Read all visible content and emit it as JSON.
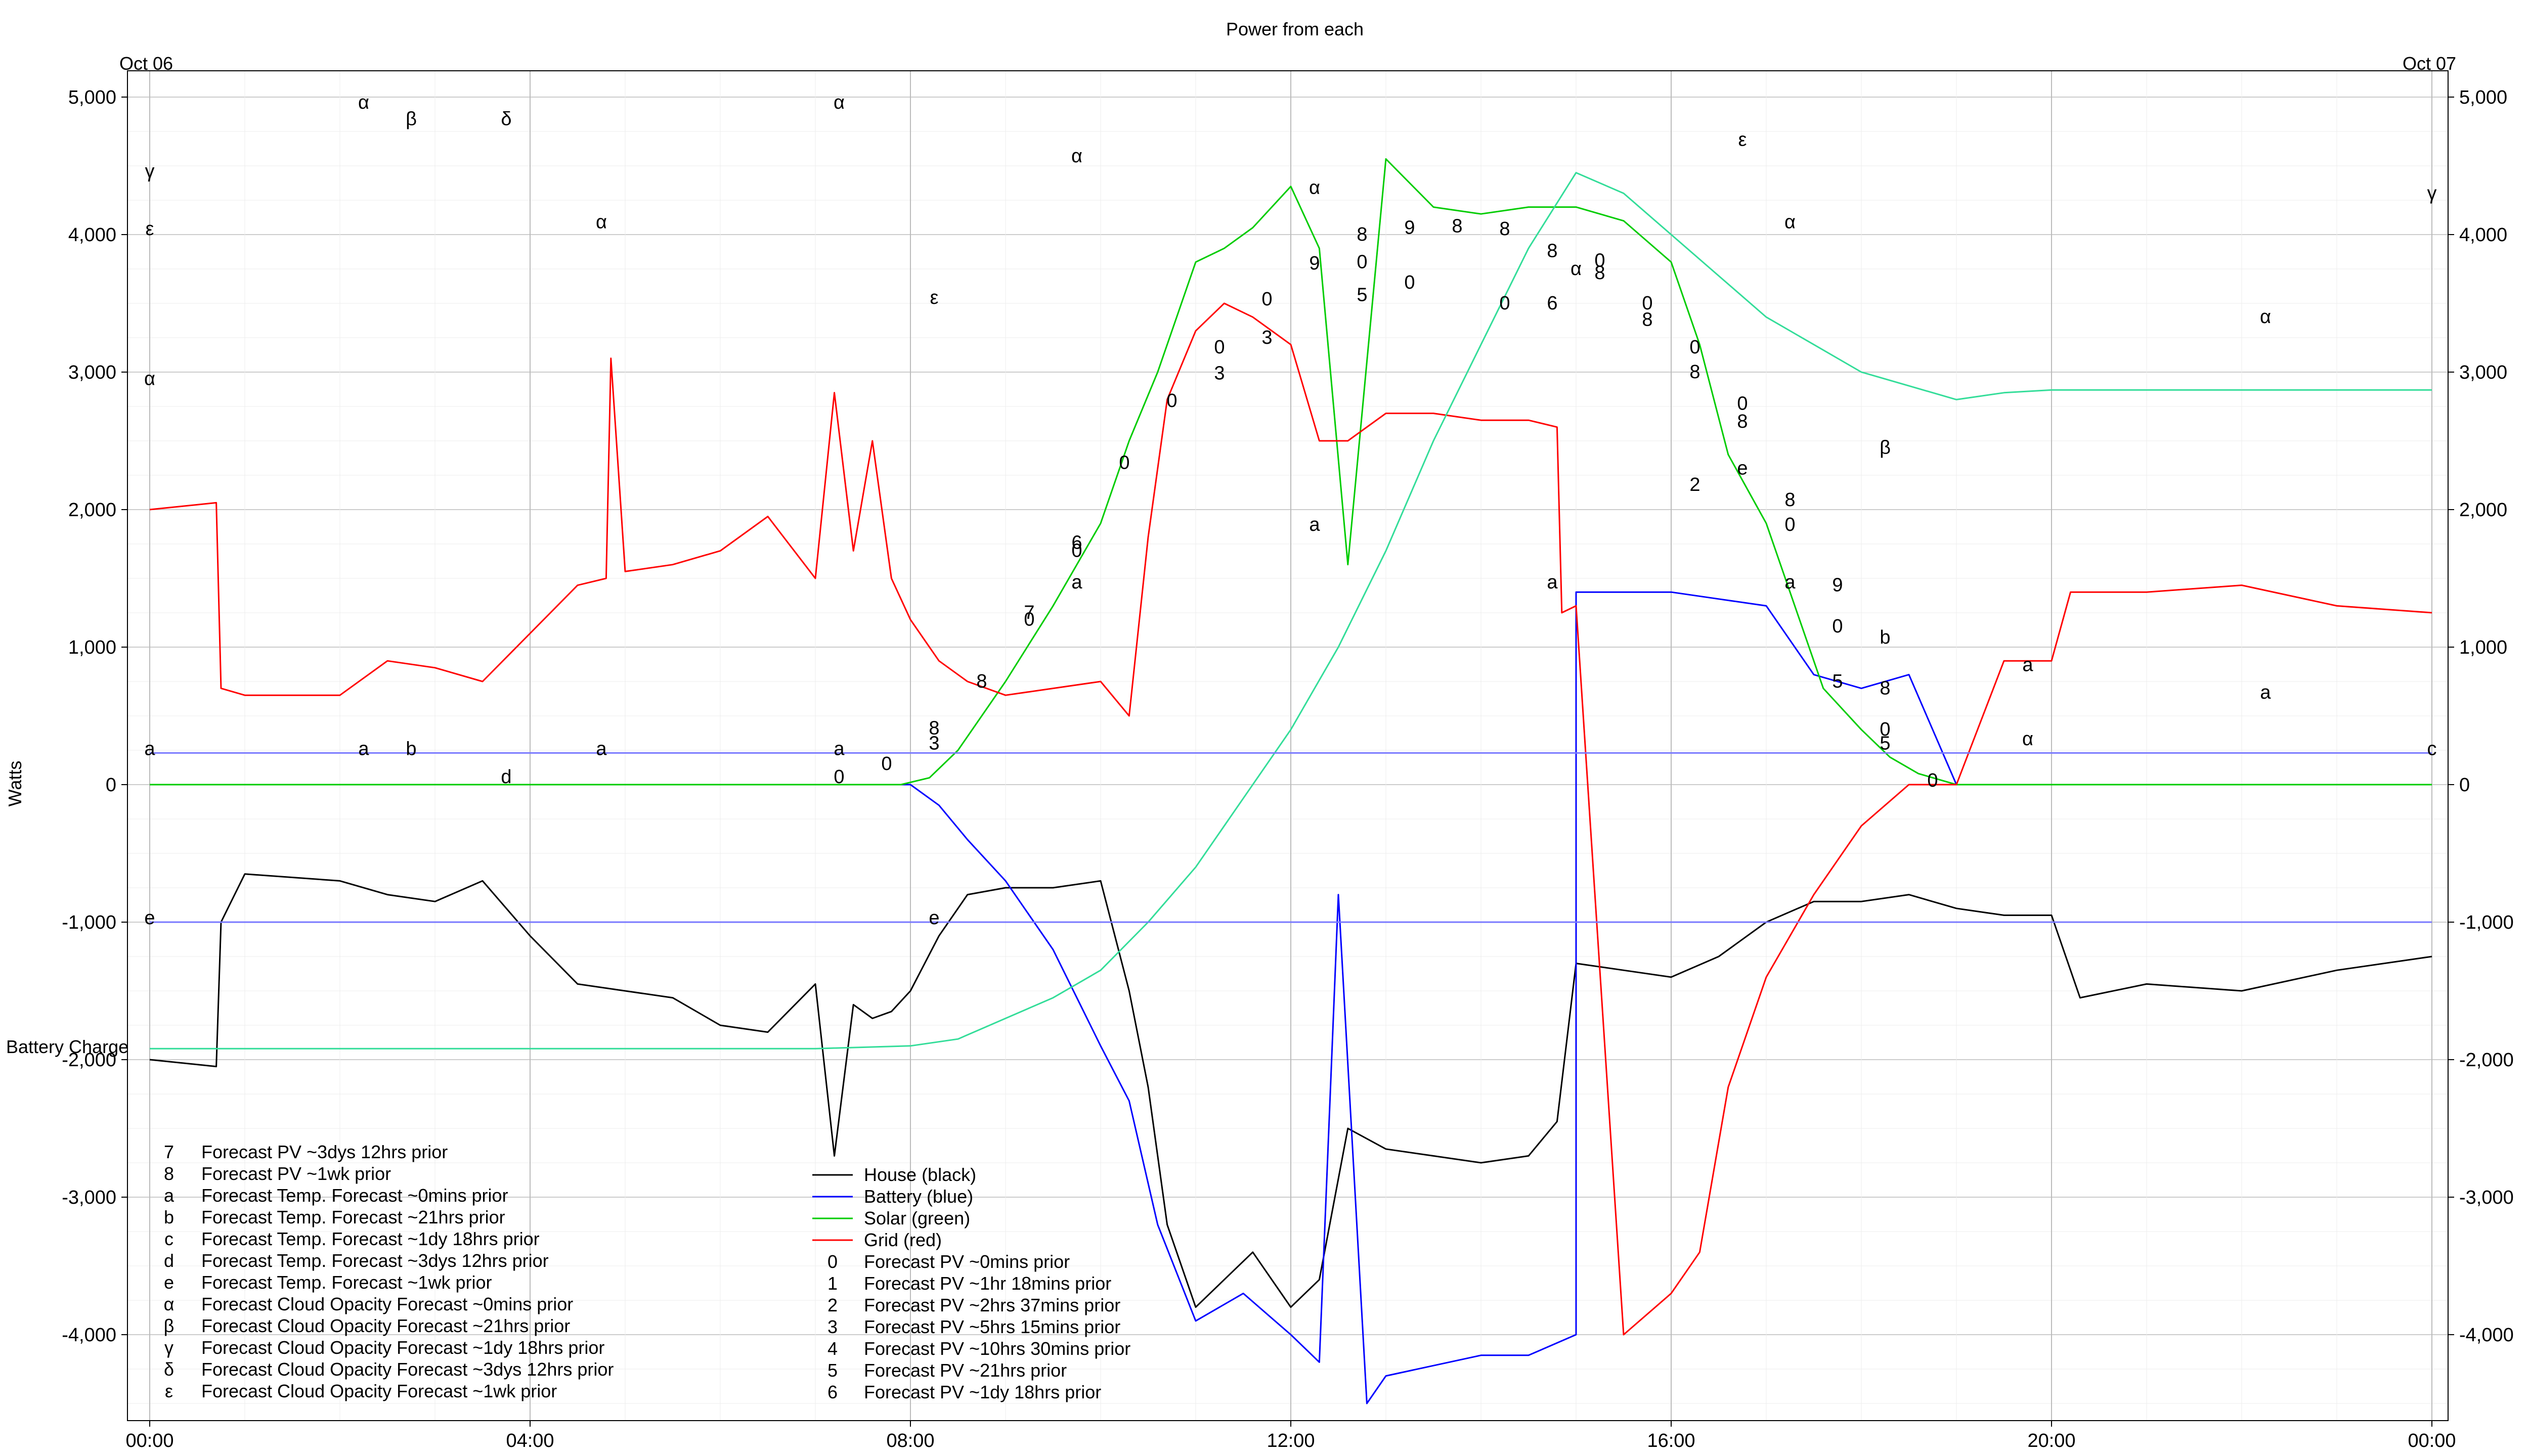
{
  "chart_data": {
    "type": "line",
    "title": "Power from each",
    "ylabel": "Watts",
    "start_date_label": "Oct 06",
    "end_date_label": "Oct 07",
    "battery_charge_label": "Battery Charge",
    "x_range_hours": [
      0,
      24
    ],
    "ylim": [
      -4650,
      5050
    ],
    "y_ticks": [
      5000,
      4000,
      3000,
      2000,
      1000,
      0,
      -1000,
      -2000,
      -3000,
      -4000
    ],
    "y_tick_labels": [
      "5,000",
      "4,000",
      "3,000",
      "2,000",
      "1,000",
      "0",
      "-1,000",
      "-2,000",
      "-3,000",
      "-4,000"
    ],
    "x_ticks": [
      0,
      4,
      8,
      12,
      16,
      20,
      24
    ],
    "x_tick_labels": [
      "00:00",
      "04:00",
      "08:00",
      "12:00",
      "16:00",
      "20:00",
      "00:00"
    ],
    "grid": true,
    "colors": {
      "house": "#000000",
      "battery": "#0000ff",
      "solar": "#00cc00",
      "grid": "#ff0000",
      "battery_charge": "#33dd99",
      "temp_forecast": "#7777ff",
      "pv_forecast": "#b088ff",
      "cloud_forecast": "#aaaaaa",
      "grid_lines": "#cccccc"
    },
    "series": [
      {
        "name": "House (black)",
        "key": "house",
        "x": [
          0,
          0.7,
          0.75,
          1.0,
          2.0,
          2.5,
          3.0,
          3.5,
          4.0,
          4.5,
          5.0,
          5.5,
          6.0,
          6.5,
          7.0,
          7.2,
          7.4,
          7.6,
          7.8,
          8.0,
          8.3,
          8.6,
          9.0,
          9.5,
          10.0,
          10.3,
          10.5,
          10.7,
          11.0,
          11.3,
          11.6,
          12.0,
          12.3,
          12.6,
          13.0,
          13.5,
          14.0,
          14.5,
          14.8,
          15.0,
          15.5,
          16.0,
          16.5,
          17.0,
          17.5,
          18.0,
          18.5,
          19.0,
          19.5,
          20.0,
          20.3,
          21.0,
          22.0,
          23.0,
          24.0
        ],
        "y": [
          -2000,
          -2050,
          -1000,
          -650,
          -700,
          -800,
          -850,
          -700,
          -1100,
          -1450,
          -1500,
          -1550,
          -1750,
          -1800,
          -1450,
          -2700,
          -1600,
          -1700,
          -1650,
          -1500,
          -1100,
          -800,
          -750,
          -750,
          -700,
          -1500,
          -2200,
          -3200,
          -3800,
          -3600,
          -3400,
          -3800,
          -3600,
          -2500,
          -2650,
          -2700,
          -2750,
          -2700,
          -2450,
          -1300,
          -1350,
          -1400,
          -1250,
          -1000,
          -850,
          -850,
          -800,
          -900,
          -950,
          -950,
          -1550,
          -1450,
          -1500,
          -1350,
          -1250
        ]
      },
      {
        "name": "Battery (blue)",
        "key": "battery",
        "x": [
          0,
          6.7,
          8.0,
          8.3,
          8.6,
          9.0,
          9.5,
          10.0,
          10.3,
          10.6,
          11.0,
          11.5,
          12.0,
          12.3,
          12.5,
          12.8,
          13.0,
          14.0,
          14.5,
          15.0,
          15.0,
          15.5,
          16.0,
          16.5,
          17.0,
          17.5,
          18.0,
          18.5,
          19.0,
          20.0,
          24.0
        ],
        "y": [
          0,
          0,
          0,
          -150,
          -400,
          -700,
          -1200,
          -1900,
          -2300,
          -3200,
          -3900,
          -3700,
          -4000,
          -4200,
          -800,
          -4500,
          -4300,
          -4150,
          -4150,
          -4000,
          1400,
          1400,
          1400,
          1350,
          1300,
          800,
          700,
          800,
          0,
          0,
          0
        ]
      },
      {
        "name": "Solar (green)",
        "key": "solar",
        "x": [
          0,
          7.9,
          8.2,
          8.5,
          9.0,
          9.5,
          10.0,
          10.3,
          10.6,
          11.0,
          11.3,
          11.6,
          12.0,
          12.3,
          12.6,
          13.0,
          13.5,
          14.0,
          14.5,
          15.0,
          15.5,
          16.0,
          16.3,
          16.6,
          17.0,
          17.3,
          17.6,
          18.0,
          18.3,
          18.6,
          19.0,
          24.0
        ],
        "y": [
          0,
          0,
          50,
          250,
          750,
          1300,
          1900,
          2500,
          3000,
          3800,
          3900,
          4050,
          4350,
          3900,
          1600,
          4550,
          4200,
          4150,
          4200,
          4200,
          4100,
          3800,
          3200,
          2400,
          1900,
          1300,
          700,
          400,
          200,
          80,
          0,
          0
        ]
      },
      {
        "name": "Grid (red)",
        "key": "grid",
        "x": [
          0,
          0.7,
          0.75,
          1.0,
          2.0,
          2.5,
          3.0,
          3.5,
          4.0,
          4.5,
          4.8,
          4.85,
          5.0,
          5.5,
          6.0,
          6.5,
          7.0,
          7.2,
          7.4,
          7.6,
          7.8,
          8.0,
          8.3,
          8.6,
          9.0,
          9.5,
          10.0,
          10.3,
          10.5,
          10.7,
          11.0,
          11.3,
          11.6,
          12.0,
          12.3,
          12.6,
          13.0,
          13.5,
          14.0,
          14.5,
          14.8,
          14.85,
          15.0,
          15.5,
          16.0,
          16.3,
          16.6,
          17.0,
          17.5,
          18.0,
          18.5,
          19.0,
          19.5,
          20.0,
          20.2,
          21.0,
          22.0,
          23.0,
          24.0
        ],
        "y": [
          2000,
          2050,
          700,
          650,
          650,
          900,
          850,
          750,
          1100,
          1450,
          1500,
          3100,
          1550,
          1600,
          1700,
          1950,
          1500,
          2850,
          1700,
          2500,
          1500,
          1200,
          900,
          750,
          650,
          700,
          750,
          500,
          1800,
          2800,
          3300,
          3500,
          3400,
          3200,
          2500,
          2500,
          2700,
          2700,
          2650,
          2650,
          2600,
          1250,
          1300,
          -4000,
          -3700,
          -3400,
          -2200,
          -1400,
          -800,
          -300,
          0,
          0,
          900,
          900,
          1400,
          1400,
          1450,
          1300,
          1250
        ]
      },
      {
        "name": "Battery Charge",
        "key": "battery_charge",
        "x": [
          0,
          7.0,
          8.0,
          8.5,
          9.0,
          9.5,
          10.0,
          10.5,
          11.0,
          11.5,
          12.0,
          12.5,
          13.0,
          13.5,
          14.0,
          14.5,
          15.0,
          15.5,
          16.0,
          16.5,
          17.0,
          17.5,
          18.0,
          18.5,
          19.0,
          19.5,
          20.0,
          24.0
        ],
        "y": [
          -1920,
          -1920,
          -1900,
          -1850,
          -1700,
          -1550,
          -1350,
          -1000,
          -600,
          -100,
          400,
          1000,
          1700,
          2500,
          3200,
          3900,
          4450,
          4300,
          4000,
          3700,
          3400,
          3200,
          3000,
          2900,
          2800,
          2850,
          2870,
          2870
        ]
      },
      {
        "name": "Forecast Temp. Forecast ~0mins prior",
        "key": "temp_forecast",
        "x": [
          0,
          6.8,
          7.0,
          24.0
        ],
        "y": [
          230,
          230,
          230,
          230
        ]
      },
      {
        "name": "Forecast Temp. Forecast ~1wk prior",
        "key": "temp_forecast",
        "x": [
          0,
          8.2,
          24.0
        ],
        "y": [
          -1000,
          -1000,
          -1000
        ]
      }
    ],
    "legend_left": [
      {
        "marker": "7",
        "label": "Forecast PV ~3dys 12hrs prior"
      },
      {
        "marker": "8",
        "label": "Forecast PV ~1wk prior"
      },
      {
        "marker": "a",
        "label": "Forecast Temp. Forecast ~0mins prior"
      },
      {
        "marker": "b",
        "label": "Forecast Temp. Forecast ~21hrs prior"
      },
      {
        "marker": "c",
        "label": "Forecast Temp. Forecast ~1dy 18hrs prior"
      },
      {
        "marker": "d",
        "label": "Forecast Temp. Forecast ~3dys 12hrs prior"
      },
      {
        "marker": "e",
        "label": "Forecast Temp. Forecast ~1wk prior"
      },
      {
        "marker": "α",
        "label": "Forecast Cloud Opacity Forecast ~0mins prior"
      },
      {
        "marker": "β",
        "label": "Forecast Cloud Opacity Forecast ~21hrs prior"
      },
      {
        "marker": "γ",
        "label": "Forecast Cloud Opacity Forecast ~1dy 18hrs prior"
      },
      {
        "marker": "δ",
        "label": "Forecast Cloud Opacity Forecast ~3dys 12hrs prior"
      },
      {
        "marker": "ε",
        "label": "Forecast Cloud Opacity Forecast ~1wk prior"
      }
    ],
    "legend_right": [
      {
        "marker": "line",
        "key": "house",
        "label": "House (black)"
      },
      {
        "marker": "line",
        "key": "battery",
        "label": "Battery (blue)"
      },
      {
        "marker": "line",
        "key": "solar",
        "label": "Solar (green)"
      },
      {
        "marker": "line",
        "key": "grid",
        "label": "Grid (red)"
      },
      {
        "marker": "0",
        "label": "Forecast PV ~0mins prior"
      },
      {
        "marker": "1",
        "label": "Forecast PV ~1hr 18mins prior"
      },
      {
        "marker": "2",
        "label": "Forecast PV ~2hrs 37mins prior"
      },
      {
        "marker": "3",
        "label": "Forecast PV ~5hrs 15mins prior"
      },
      {
        "marker": "4",
        "label": "Forecast PV ~10hrs 30mins prior"
      },
      {
        "marker": "5",
        "label": "Forecast PV ~21hrs prior"
      },
      {
        "marker": "6",
        "label": "Forecast PV ~1dy 18hrs prior"
      }
    ],
    "annotations": [
      {
        "text": "α",
        "x": 2.25,
        "y": 4960
      },
      {
        "text": "β",
        "x": 2.75,
        "y": 4840
      },
      {
        "text": "δ",
        "x": 3.75,
        "y": 4840
      },
      {
        "text": "α",
        "x": 7.25,
        "y": 4960
      },
      {
        "text": "α",
        "x": 9.75,
        "y": 4570
      },
      {
        "text": "α",
        "x": 4.75,
        "y": 4090
      },
      {
        "text": "ε",
        "x": 8.25,
        "y": 3540
      },
      {
        "text": "ε",
        "x": 16.75,
        "y": 4690
      },
      {
        "text": "α",
        "x": 17.25,
        "y": 4090
      },
      {
        "text": "α",
        "x": 22.25,
        "y": 3400
      },
      {
        "text": "β",
        "x": 18.25,
        "y": 2450
      },
      {
        "text": "α",
        "x": 15.0,
        "y": 3750
      },
      {
        "text": "8",
        "x": 13.75,
        "y": 4060
      },
      {
        "text": "8",
        "x": 14.25,
        "y": 4040
      },
      {
        "text": "8",
        "x": 14.75,
        "y": 3880
      },
      {
        "text": "9",
        "x": 13.25,
        "y": 4050
      },
      {
        "text": "0",
        "x": 13.25,
        "y": 3650
      },
      {
        "text": "0",
        "x": 14.25,
        "y": 3500
      },
      {
        "text": "6",
        "x": 14.75,
        "y": 3500
      },
      {
        "text": "0",
        "x": 15.75,
        "y": 3500
      },
      {
        "text": "8",
        "x": 15.75,
        "y": 3380
      },
      {
        "text": "0",
        "x": 16.25,
        "y": 3180
      },
      {
        "text": "8",
        "x": 16.25,
        "y": 3000
      },
      {
        "text": "0",
        "x": 16.75,
        "y": 2770
      },
      {
        "text": "8",
        "x": 16.75,
        "y": 2640
      },
      {
        "text": "e",
        "x": 16.75,
        "y": 2300
      },
      {
        "text": "2",
        "x": 16.25,
        "y": 2180
      },
      {
        "text": "8",
        "x": 17.25,
        "y": 2070
      },
      {
        "text": "0",
        "x": 17.25,
        "y": 1890
      },
      {
        "text": "a",
        "x": 12.25,
        "y": 1890
      },
      {
        "text": "a",
        "x": 9.75,
        "y": 1470
      },
      {
        "text": "a",
        "x": 14.75,
        "y": 1470
      },
      {
        "text": "a",
        "x": 17.25,
        "y": 1470
      },
      {
        "text": "b",
        "x": 18.25,
        "y": 1070
      },
      {
        "text": "a",
        "x": 19.75,
        "y": 870
      },
      {
        "text": "a",
        "x": 22.25,
        "y": 670
      },
      {
        "text": "α",
        "x": 19.75,
        "y": 330
      },
      {
        "text": "a",
        "x": 2.25,
        "y": 260
      },
      {
        "text": "b",
        "x": 2.75,
        "y": 260
      },
      {
        "text": "a",
        "x": 4.75,
        "y": 260
      },
      {
        "text": "a",
        "x": 7.25,
        "y": 260
      },
      {
        "text": "d",
        "x": 3.75,
        "y": 55
      },
      {
        "text": "e",
        "x": 8.25,
        "y": -970
      },
      {
        "text": "8",
        "x": 8.25,
        "y": 410
      },
      {
        "text": "3",
        "x": 8.25,
        "y": 300
      },
      {
        "text": "0",
        "x": 7.25,
        "y": 55
      },
      {
        "text": "0",
        "x": 7.75,
        "y": 150
      },
      {
        "text": "8",
        "x": 8.75,
        "y": 750
      },
      {
        "text": "7",
        "x": 9.25,
        "y": 1250
      },
      {
        "text": "0",
        "x": 9.25,
        "y": 1200
      },
      {
        "text": "6",
        "x": 9.75,
        "y": 1760
      },
      {
        "text": "0",
        "x": 9.75,
        "y": 1700
      },
      {
        "text": "0",
        "x": 10.25,
        "y": 2340
      },
      {
        "text": "0",
        "x": 10.75,
        "y": 2790
      },
      {
        "text": "0",
        "x": 11.25,
        "y": 3180
      },
      {
        "text": "3",
        "x": 11.25,
        "y": 2990
      },
      {
        "text": "0",
        "x": 11.75,
        "y": 3530
      },
      {
        "text": "3",
        "x": 11.75,
        "y": 3250
      },
      {
        "text": "9",
        "x": 12.25,
        "y": 3790
      },
      {
        "text": "α",
        "x": 12.25,
        "y": 4340
      },
      {
        "text": "8",
        "x": 12.75,
        "y": 4000
      },
      {
        "text": "0",
        "x": 12.75,
        "y": 3800
      },
      {
        "text": "5",
        "x": 12.75,
        "y": 3560
      },
      {
        "text": "0",
        "x": 15.25,
        "y": 3810
      },
      {
        "text": "8",
        "x": 15.25,
        "y": 3720
      },
      {
        "text": "9",
        "x": 17.75,
        "y": 1450
      },
      {
        "text": "0",
        "x": 17.75,
        "y": 1150
      },
      {
        "text": "5",
        "x": 17.75,
        "y": 750
      },
      {
        "text": "8",
        "x": 18.25,
        "y": 700
      },
      {
        "text": "0",
        "x": 18.25,
        "y": 400
      },
      {
        "text": "5",
        "x": 18.25,
        "y": 300
      },
      {
        "text": "0",
        "x": 18.75,
        "y": 30
      },
      {
        "text": "γ",
        "x": 0.0,
        "y": 4460
      },
      {
        "text": "ε",
        "x": 0.0,
        "y": 4040
      },
      {
        "text": "α",
        "x": 0.0,
        "y": 2950
      },
      {
        "text": "a",
        "x": 0.0,
        "y": 260
      },
      {
        "text": "e",
        "x": 0.0,
        "y": -970
      },
      {
        "text": "γ",
        "x": 24.0,
        "y": 4300
      },
      {
        "text": "c",
        "x": 24.0,
        "y": 260
      }
    ]
  }
}
